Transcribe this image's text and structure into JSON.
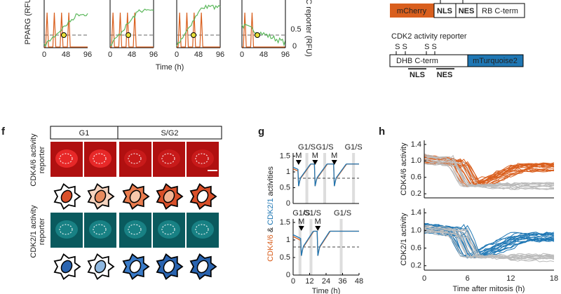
{
  "panel_e": {
    "left_axis_label": "PPARG (RFU",
    "right_axis_label": "/C reporter (RFU)",
    "x_ticks": [
      "0",
      "48",
      "96"
    ],
    "right_ticks": [
      "0.5",
      "0"
    ],
    "x_label": "Time (h)"
  },
  "reporters": {
    "cdk46": {
      "fluor": "mCherry",
      "nls": "NLS",
      "nes": "NES",
      "domain": "RB C-term"
    },
    "cdk2": {
      "title": "CDK2 activity reporter",
      "sites": [
        "S S",
        "S S"
      ],
      "domain": "DHB C-term",
      "fluor": "mTurquoise2",
      "nls": "NLS",
      "nes": "NES"
    }
  },
  "panel_f": {
    "letter": "f",
    "phases": [
      "G1",
      "S/G2"
    ],
    "row1_label": [
      "CDK4/6 activity",
      "reporter"
    ],
    "row2_label": [
      "CDK2/1 activity",
      "reporter"
    ]
  },
  "panel_g": {
    "letter": "g",
    "top_events": [
      "G1/S",
      "G1/S",
      "G1/S",
      "M",
      "M",
      "M"
    ],
    "bottom_events": [
      "G1/S",
      "G1/S",
      "G1/S",
      "M",
      "M"
    ],
    "y_ticks": [
      "1.5",
      "1",
      "0.5",
      "0"
    ],
    "x_ticks": [
      "0",
      "12",
      "24",
      "36",
      "48"
    ],
    "x_label": "Time (h)",
    "y_label": [
      "CDK4/6",
      " & ",
      "CDK2/1",
      " activities"
    ]
  },
  "panel_h": {
    "letter": "h",
    "y_ticks": [
      "1.4",
      "1.0",
      "0.6",
      "0.2"
    ],
    "x_ticks": [
      "0",
      "6",
      "12",
      "18"
    ],
    "x_label": "Time after mitosis (h)",
    "top_label": "CDK4/6 activity",
    "bottom_label": "CDK2/1 activity"
  }
}
